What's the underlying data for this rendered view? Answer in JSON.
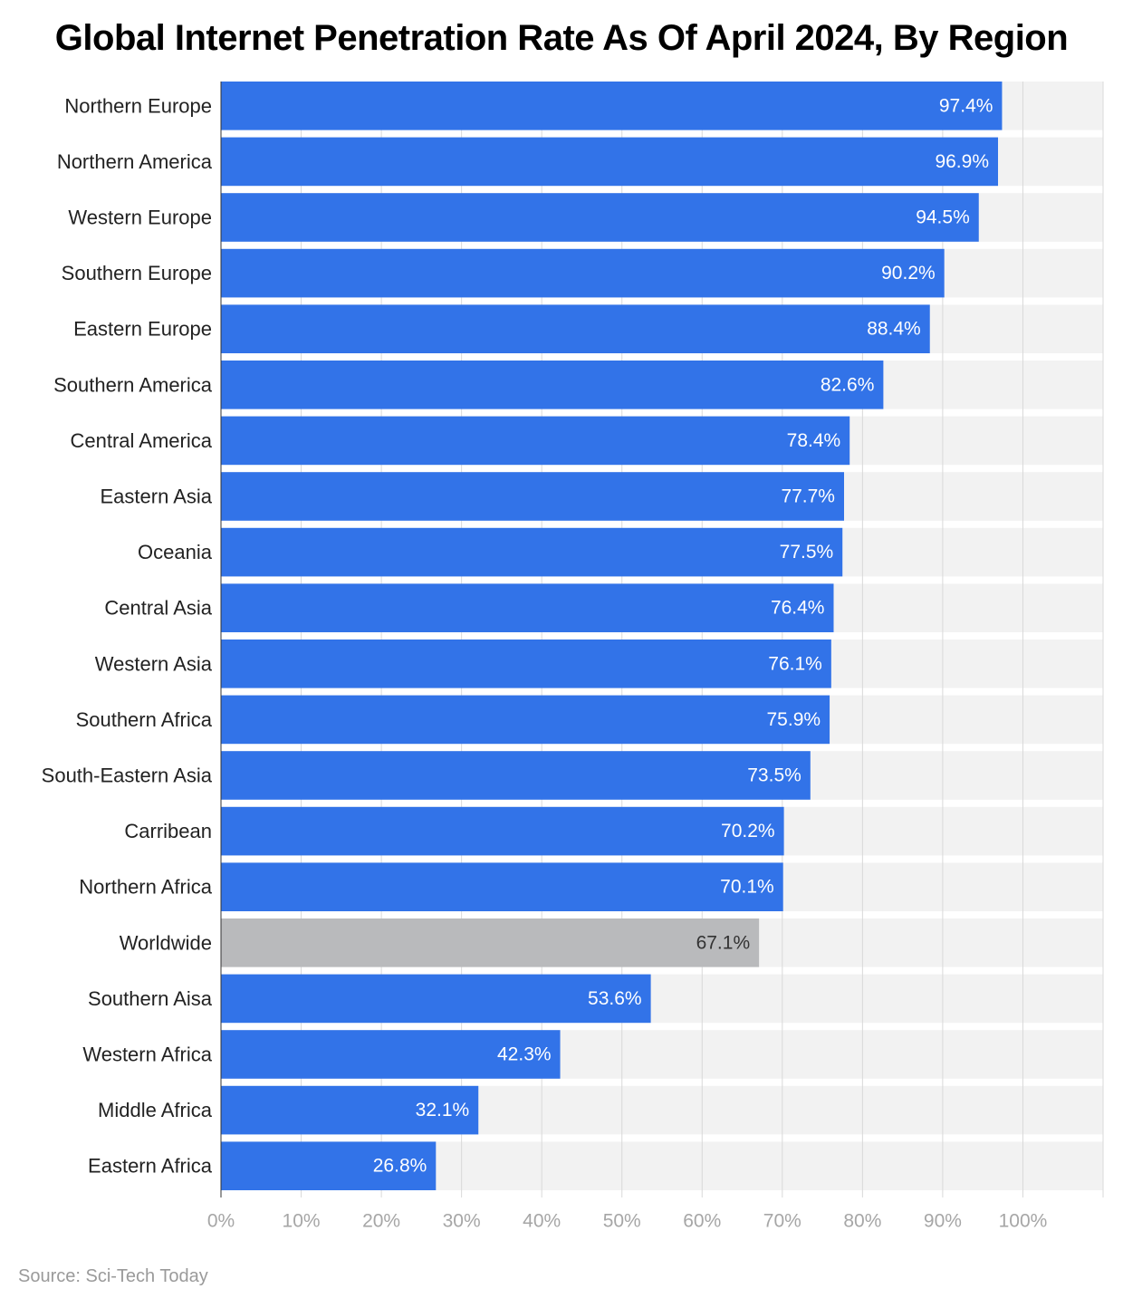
{
  "chart_data": {
    "type": "bar",
    "orientation": "horizontal",
    "title": "Global Internet Penetration Rate As Of April 2024, By Region",
    "source": "Source: Sci-Tech Today",
    "xlabel": "",
    "ylabel": "",
    "xlim": [
      0,
      110
    ],
    "grid": true,
    "categories": [
      "Northern Europe",
      "Northern America",
      "Western Europe",
      "Southern Europe",
      "Eastern Europe",
      "Southern America",
      "Central America",
      "Eastern Asia",
      "Oceania",
      "Central Asia",
      "Western Asia",
      "Southern Africa",
      "South-Eastern Asia",
      "Carribean",
      "Northern Africa",
      "Worldwide",
      "Southern Aisa",
      "Western Africa",
      "Middle Africa",
      "Eastern Africa"
    ],
    "values": [
      97.4,
      96.9,
      94.5,
      90.2,
      88.4,
      82.6,
      78.4,
      77.7,
      77.5,
      76.4,
      76.1,
      75.9,
      73.5,
      70.2,
      70.1,
      67.1,
      53.6,
      42.3,
      32.1,
      26.8
    ],
    "value_labels": [
      "97.4%",
      "96.9%",
      "94.5%",
      "90.2%",
      "88.4%",
      "82.6%",
      "78.4%",
      "77.7%",
      "77.5%",
      "76.4%",
      "76.1%",
      "75.9%",
      "73.5%",
      "70.2%",
      "70.1%",
      "67.1%",
      "53.6%",
      "42.3%",
      "32.1%",
      "26.8%"
    ],
    "ticks": [
      0,
      10,
      20,
      30,
      40,
      50,
      60,
      70,
      80,
      90,
      100
    ],
    "tick_labels": [
      "0%",
      "10%",
      "20%",
      "30%",
      "40%",
      "50%",
      "60%",
      "70%",
      "80%",
      "90%",
      "100%"
    ],
    "highlight_category": "Worldwide",
    "colors": {
      "bar": "#3273e8",
      "highlight_bar": "#b9babc",
      "track": "#f2f2f2",
      "grid": "#d9d9d9",
      "value_text": "#ffffff",
      "highlight_value_text": "#333333"
    }
  }
}
